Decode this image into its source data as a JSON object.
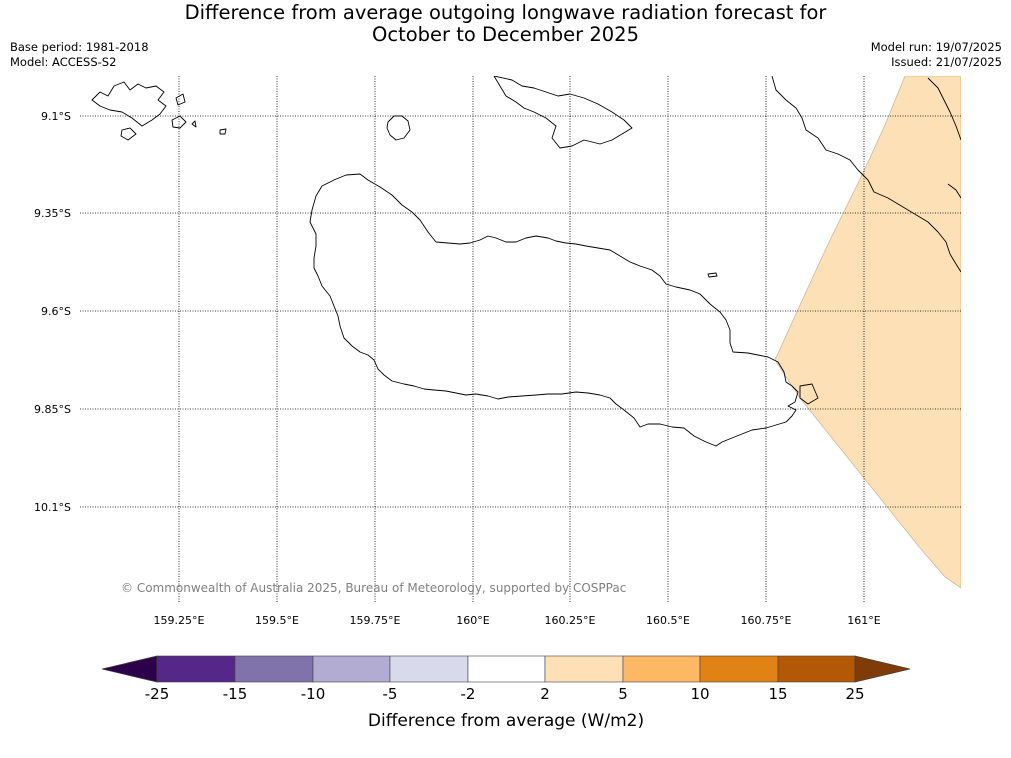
{
  "title_line1": "Difference from average outgoing longwave radiation forecast for",
  "title_line2": "October to December 2025",
  "base_period": "Base period: 1981-2018",
  "model": "Model: ACCESS-S2",
  "model_run": "Model run: 19/07/2025",
  "issued": "Issued: 21/07/2025",
  "copyright": "© Commonwealth of Australia 2025, Bureau of Meteorology, supported by COSPPac",
  "lat_labels": [
    "9.1°S",
    "9.35°S",
    "9.6°S",
    "9.85°S",
    "10.1°S"
  ],
  "lon_labels": [
    "159.25°E",
    "159.5°E",
    "159.75°E",
    "160°E",
    "160.25°E",
    "160.5°E",
    "160.75°E",
    "161°E"
  ],
  "colorbar": {
    "title": "Difference from average (W/m2)",
    "tick_labels": [
      "-25",
      "-15",
      "-10",
      "-5",
      "-2",
      "2",
      "5",
      "10",
      "15",
      "25"
    ],
    "colors": [
      "#2d004b",
      "#542788",
      "#8073ac",
      "#b2abd2",
      "#d8daeb",
      "#ffffff",
      "#fee0b6",
      "#fdb863",
      "#e08214",
      "#b35806",
      "#7f3b08"
    ]
  },
  "overlay_color": "#fee0b6"
}
